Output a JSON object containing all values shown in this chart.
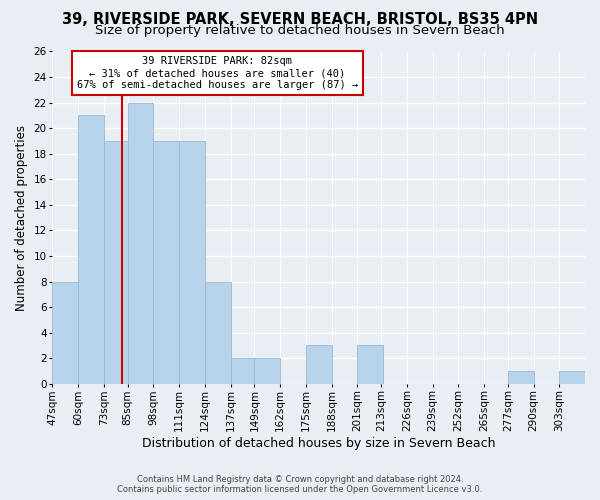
{
  "title": "39, RIVERSIDE PARK, SEVERN BEACH, BRISTOL, BS35 4PN",
  "subtitle": "Size of property relative to detached houses in Severn Beach",
  "xlabel": "Distribution of detached houses by size in Severn Beach",
  "ylabel": "Number of detached properties",
  "bin_edges": [
    47,
    60,
    73,
    85,
    98,
    111,
    124,
    137,
    149,
    162,
    175,
    188,
    201,
    213,
    226,
    239,
    252,
    265,
    277,
    290,
    303
  ],
  "bin_labels": [
    "47sqm",
    "60sqm",
    "73sqm",
    "85sqm",
    "98sqm",
    "111sqm",
    "124sqm",
    "137sqm",
    "149sqm",
    "162sqm",
    "175sqm",
    "188sqm",
    "201sqm",
    "213sqm",
    "226sqm",
    "239sqm",
    "252sqm",
    "265sqm",
    "277sqm",
    "290sqm",
    "303sqm"
  ],
  "counts": [
    8,
    21,
    19,
    22,
    19,
    19,
    8,
    2,
    2,
    0,
    3,
    0,
    3,
    0,
    0,
    0,
    0,
    0,
    1,
    0,
    1
  ],
  "bar_color": "#b8d4ea",
  "property_line_x": 82,
  "property_line_color": "#cc0000",
  "annotation_text": "39 RIVERSIDE PARK: 82sqm\n← 31% of detached houses are smaller (40)\n67% of semi-detached houses are larger (87) →",
  "annotation_box_facecolor": "#ffffff",
  "annotation_box_edgecolor": "#cc0000",
  "ylim": [
    0,
    26
  ],
  "yticks": [
    0,
    2,
    4,
    6,
    8,
    10,
    12,
    14,
    16,
    18,
    20,
    22,
    24,
    26
  ],
  "background_color": "#e8eef4",
  "grid_color": "#ffffff",
  "footer_line1": "Contains HM Land Registry data © Crown copyright and database right 2024.",
  "footer_line2": "Contains public sector information licensed under the Open Government Licence v3.0.",
  "title_fontsize": 10.5,
  "subtitle_fontsize": 9.5,
  "xlabel_fontsize": 9,
  "ylabel_fontsize": 8.5,
  "tick_fontsize": 7.5,
  "annotation_fontsize": 7.5,
  "footer_fontsize": 6
}
